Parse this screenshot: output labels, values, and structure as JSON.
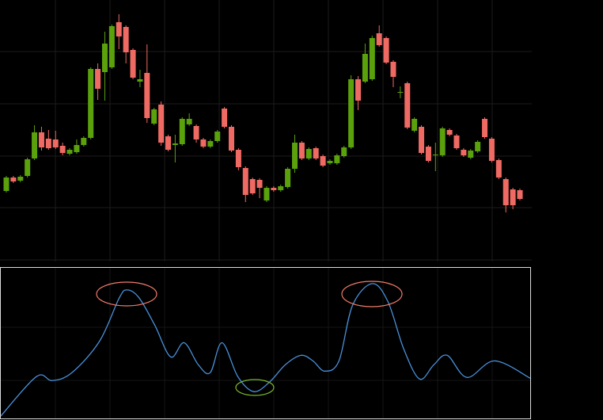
{
  "chart_data": [
    {
      "type": "candlestick",
      "up_color": "#5aa10c",
      "down_color": "#f06a64",
      "ylim": [
        0,
        330
      ],
      "open": [
        89,
        106,
        102,
        108,
        130,
        163,
        155,
        154,
        146,
        136,
        138,
        147,
        156,
        243,
        239,
        245,
        302,
        296,
        267,
        227,
        238,
        174,
        198,
        158,
        147,
        148,
        173,
        171,
        154,
        145,
        152,
        193,
        170,
        141,
        118,
        104,
        103,
        77,
        93,
        90,
        94,
        117,
        150,
        130,
        143,
        133,
        124,
        124,
        133,
        144,
        230,
        227,
        230,
        288,
        282,
        252,
        213,
        225,
        165,
        170,
        145,
        134,
        134,
        166,
        159,
        141,
        131,
        139,
        180,
        155,
        128,
        104,
        91,
        90
      ],
      "high": [
        108,
        108,
        109,
        131,
        172,
        170,
        166,
        165,
        150,
        143,
        154,
        158,
        245,
        250,
        290,
        299,
        312,
        298,
        269,
        242,
        274,
        194,
        202,
        160,
        160,
        182,
        187,
        173,
        156,
        154,
        166,
        195,
        172,
        143,
        120,
        106,
        105,
        95,
        95,
        97,
        119,
        160,
        152,
        144,
        145,
        135,
        129,
        136,
        146,
        235,
        234,
        275,
        285,
        298,
        284,
        254,
        221,
        227,
        182,
        172,
        147,
        150,
        170,
        168,
        161,
        143,
        142,
        153,
        182,
        157,
        130,
        106,
        93,
        92
      ],
      "low": [
        87,
        99,
        100,
        106,
        128,
        140,
        141,
        142,
        134,
        134,
        136,
        145,
        154,
        204,
        203,
        243,
        268,
        250,
        230,
        220,
        175,
        172,
        146,
        139,
        125,
        146,
        171,
        150,
        143,
        143,
        150,
        168,
        138,
        115,
        75,
        84,
        80,
        75,
        88,
        88,
        92,
        112,
        128,
        128,
        128,
        119,
        122,
        122,
        131,
        142,
        191,
        225,
        228,
        271,
        249,
        220,
        206,
        167,
        163,
        135,
        125,
        114,
        132,
        158,
        141,
        132,
        129,
        137,
        155,
        125,
        104,
        62,
        66,
        77
      ],
      "close": [
        106,
        101,
        107,
        129,
        163,
        144,
        143,
        144,
        137,
        141,
        147,
        156,
        243,
        218,
        275,
        297,
        284,
        264,
        232,
        230,
        181,
        192,
        150,
        141,
        149,
        180,
        180,
        154,
        145,
        152,
        164,
        170,
        140,
        119,
        84,
        86,
        93,
        93,
        90,
        95,
        117,
        150,
        130,
        142,
        130,
        121,
        127,
        134,
        144,
        230,
        203,
        262,
        282,
        273,
        251,
        233,
        214,
        169,
        180,
        137,
        127,
        135,
        168,
        160,
        143,
        134,
        140,
        151,
        157,
        127,
        106,
        71,
        71,
        79
      ]
    },
    {
      "type": "line",
      "color": "#4a90d9",
      "xlim": [
        0,
        670
      ],
      "ylim": [
        0,
        191
      ],
      "x": [
        0,
        45,
        65,
        90,
        125,
        150,
        160,
        175,
        195,
        215,
        232,
        250,
        265,
        280,
        300,
        320,
        340,
        360,
        380,
        395,
        410,
        428,
        445,
        470,
        490,
        510,
        530,
        548,
        565,
        590,
        625,
        670
      ],
      "values": [
        3,
        53,
        48,
        58,
        98,
        153,
        163,
        153,
        118,
        78,
        96,
        68,
        58,
        96,
        53,
        34,
        46,
        68,
        80,
        73,
        60,
        73,
        143,
        171,
        148,
        88,
        50,
        68,
        80,
        52,
        73,
        51
      ]
    }
  ]
}
